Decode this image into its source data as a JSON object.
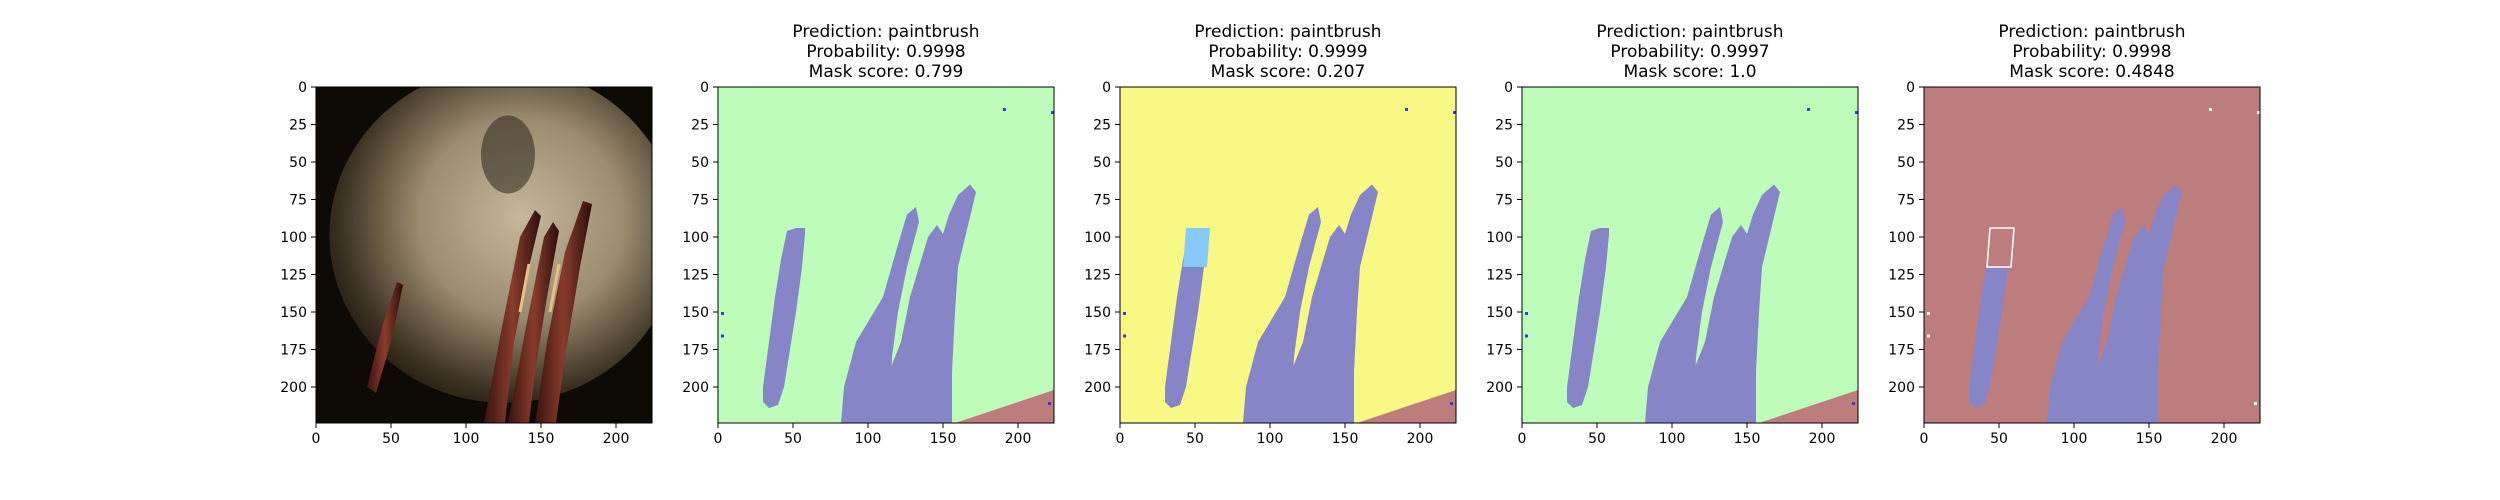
{
  "figure": {
    "panels": [
      {
        "titles": [],
        "image": "original",
        "mask_colors": {}
      },
      {
        "titles": [
          "Prediction: paintbrush",
          "Probability: 0.9998",
          "Mask score: 0.799"
        ],
        "image": "mask",
        "mask_colors": {
          "background": "#bdfcb9",
          "brush": "#8585c7",
          "corner": "#be7d7d",
          "highlight": null,
          "dots": "#3b3bd1"
        }
      },
      {
        "titles": [
          "Prediction: paintbrush",
          "Probability: 0.9999",
          "Mask score: 0.207"
        ],
        "image": "mask",
        "mask_colors": {
          "background": "#f8f884",
          "brush": "#8585c7",
          "corner": "#be7d7d",
          "highlight": "#86c8f8",
          "dots": "#3b3bd1"
        }
      },
      {
        "titles": [
          "Prediction: paintbrush",
          "Probability: 0.9997",
          "Mask score: 1.0"
        ],
        "image": "mask",
        "mask_colors": {
          "background": "#bdfcb9",
          "brush": "#8585c7",
          "corner": "#be7d7d",
          "highlight": null,
          "dots": "#3b3bd1"
        }
      },
      {
        "titles": [
          "Prediction: paintbrush",
          "Probability: 0.9998",
          "Mask score: 0.4848"
        ],
        "image": "mask",
        "mask_colors": {
          "background": "#be7d7d",
          "brush": "#8585c7",
          "corner": "#be7d7d",
          "highlight": "#be7d7d",
          "dots": "#ffffff"
        }
      }
    ]
  },
  "chart_data": {
    "type": "image-grid",
    "panel_count": 5,
    "xlim": [
      0,
      224
    ],
    "ylim": [
      224,
      0
    ],
    "xticks": [
      0,
      50,
      100,
      150,
      200
    ],
    "yticks": [
      0,
      25,
      50,
      75,
      100,
      125,
      150,
      175,
      200
    ],
    "prediction": "paintbrush",
    "probabilities": [
      null,
      0.9998,
      0.9999,
      0.9997,
      0.9998
    ],
    "mask_scores": [
      null,
      0.799,
      0.207,
      1.0,
      0.4848
    ]
  }
}
